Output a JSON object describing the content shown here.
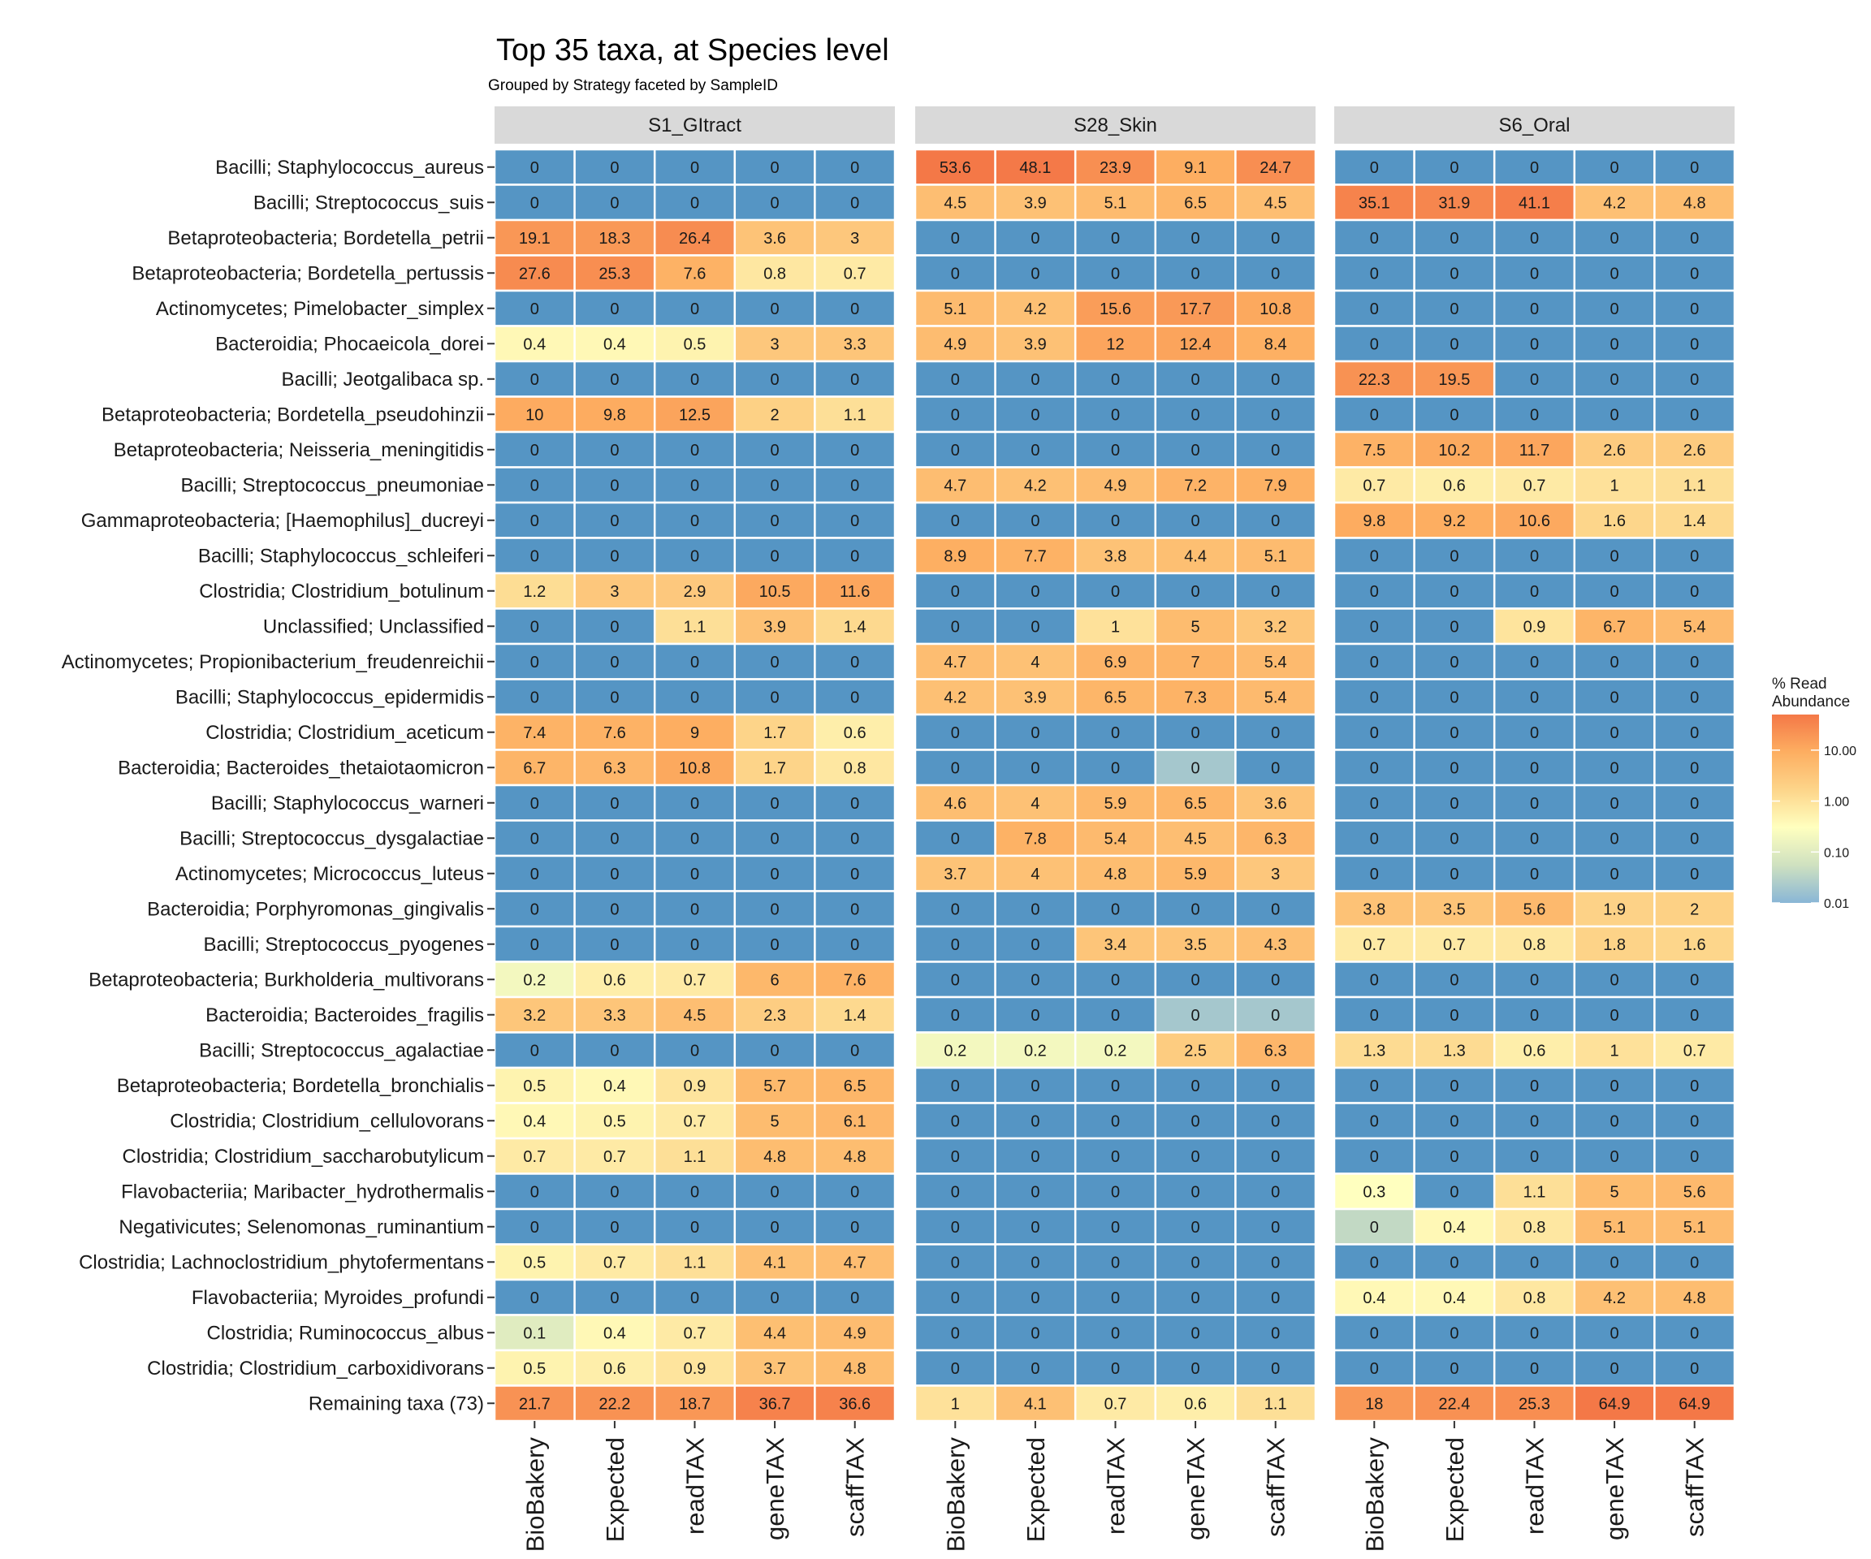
{
  "chart_data": {
    "type": "heatmap",
    "title": "Top 35 taxa, at Species level",
    "subtitle": "Grouped by Strategy faceted by SampleID",
    "facets": [
      "S1_GItract",
      "S28_Skin",
      "S6_Oral"
    ],
    "strategies": [
      "BioBakery",
      "Expected",
      "readTAX",
      "geneTAX",
      "scaffTAX"
    ],
    "taxa": [
      "Bacilli; Staphylococcus_aureus",
      "Bacilli; Streptococcus_suis",
      "Betaproteobacteria; Bordetella_petrii",
      "Betaproteobacteria; Bordetella_pertussis",
      "Actinomycetes; Pimelobacter_simplex",
      "Bacteroidia; Phocaeicola_dorei",
      "Bacilli; Jeotgalibaca sp.",
      "Betaproteobacteria; Bordetella_pseudohinzii",
      "Betaproteobacteria; Neisseria_meningitidis",
      "Bacilli; Streptococcus_pneumoniae",
      "Gammaproteobacteria; [Haemophilus]_ducreyi",
      "Bacilli; Staphylococcus_schleiferi",
      "Clostridia; Clostridium_botulinum",
      "Unclassified; Unclassified",
      "Actinomycetes; Propionibacterium_freudenreichii",
      "Bacilli; Staphylococcus_epidermidis",
      "Clostridia; Clostridium_aceticum",
      "Bacteroidia; Bacteroides_thetaiotaomicron",
      "Bacilli; Staphylococcus_warneri",
      "Bacilli; Streptococcus_dysgalactiae",
      "Actinomycetes; Micrococcus_luteus",
      "Bacteroidia; Porphyromonas_gingivalis",
      "Bacilli; Streptococcus_pyogenes",
      "Betaproteobacteria; Burkholderia_multivorans",
      "Bacteroidia; Bacteroides_fragilis",
      "Bacilli; Streptococcus_agalactiae",
      "Betaproteobacteria; Bordetella_bronchialis",
      "Clostridia; Clostridium_cellulovorans",
      "Clostridia; Clostridium_saccharobutylicum",
      "Flavobacteriia; Maribacter_hydrothermalis",
      "Negativicutes; Selenomonas_ruminantium",
      "Clostridia; Lachnoclostridium_phytofermentans",
      "Flavobacteriia; Myroides_profundi",
      "Clostridia; Ruminococcus_albus",
      "Clostridia; Clostridium_carboxidivorans",
      "Remaining taxa (73)"
    ],
    "values": {
      "S1_GItract": [
        [
          0,
          0,
          0,
          0,
          0
        ],
        [
          0,
          0,
          0,
          0,
          0
        ],
        [
          19.1,
          18.3,
          26.4,
          3.6,
          3
        ],
        [
          27.6,
          25.3,
          7.6,
          0.8,
          0.7
        ],
        [
          0,
          0,
          0,
          0,
          0
        ],
        [
          0.4,
          0.4,
          0.5,
          3,
          3.3
        ],
        [
          0,
          0,
          0,
          0,
          0
        ],
        [
          10,
          9.8,
          12.5,
          2,
          1.1
        ],
        [
          0,
          0,
          0,
          0,
          0
        ],
        [
          0,
          0,
          0,
          0,
          0
        ],
        [
          0,
          0,
          0,
          0,
          0
        ],
        [
          0,
          0,
          0,
          0,
          0
        ],
        [
          1.2,
          3,
          2.9,
          10.5,
          11.6
        ],
        [
          0,
          0,
          1.1,
          3.9,
          1.4
        ],
        [
          0,
          0,
          0,
          0,
          0
        ],
        [
          0,
          0,
          0,
          0,
          0
        ],
        [
          7.4,
          7.6,
          9,
          1.7,
          0.6
        ],
        [
          6.7,
          6.3,
          10.8,
          1.7,
          0.8
        ],
        [
          0,
          0,
          0,
          0,
          0
        ],
        [
          0,
          0,
          0,
          0,
          0
        ],
        [
          0,
          0,
          0,
          0,
          0
        ],
        [
          0,
          0,
          0,
          0,
          0
        ],
        [
          0,
          0,
          0,
          0,
          0
        ],
        [
          0.2,
          0.6,
          0.7,
          6,
          7.6
        ],
        [
          3.2,
          3.3,
          4.5,
          2.3,
          1.4
        ],
        [
          0,
          0,
          0,
          0,
          0
        ],
        [
          0.5,
          0.4,
          0.9,
          5.7,
          6.5
        ],
        [
          0.4,
          0.5,
          0.7,
          5,
          6.1
        ],
        [
          0.7,
          0.7,
          1.1,
          4.8,
          4.8
        ],
        [
          0,
          0,
          0,
          0,
          0
        ],
        [
          0,
          0,
          0,
          0,
          0
        ],
        [
          0.5,
          0.7,
          1.1,
          4.1,
          4.7
        ],
        [
          0,
          0,
          0,
          0,
          0
        ],
        [
          0.1,
          0.4,
          0.7,
          4.4,
          4.9
        ],
        [
          0.5,
          0.6,
          0.9,
          3.7,
          4.8
        ],
        [
          21.7,
          22.2,
          18.7,
          36.7,
          36.6
        ]
      ],
      "S28_Skin": [
        [
          53.6,
          48.1,
          23.9,
          9.1,
          24.7
        ],
        [
          4.5,
          3.9,
          5.1,
          6.5,
          4.5
        ],
        [
          0,
          0,
          0,
          0,
          0
        ],
        [
          0,
          0,
          0,
          0,
          0
        ],
        [
          5.1,
          4.2,
          15.6,
          17.7,
          10.8
        ],
        [
          4.9,
          3.9,
          12,
          12.4,
          8.4
        ],
        [
          0,
          0,
          0,
          0,
          0
        ],
        [
          0,
          0,
          0,
          0,
          0
        ],
        [
          0,
          0,
          0,
          0,
          0
        ],
        [
          4.7,
          4.2,
          4.9,
          7.2,
          7.9
        ],
        [
          0,
          0,
          0,
          0,
          0
        ],
        [
          8.9,
          7.7,
          3.8,
          4.4,
          5.1
        ],
        [
          0,
          0,
          0,
          0,
          0
        ],
        [
          0,
          0,
          1,
          5,
          3.2
        ],
        [
          4.7,
          4,
          6.9,
          7,
          5.4
        ],
        [
          4.2,
          3.9,
          6.5,
          7.3,
          5.4
        ],
        [
          0,
          0,
          0,
          0,
          0
        ],
        [
          0,
          0,
          0,
          0,
          0
        ],
        [
          4.6,
          4,
          5.9,
          6.5,
          3.6
        ],
        [
          0,
          7.8,
          5.4,
          4.5,
          6.3
        ],
        [
          3.7,
          4,
          4.8,
          5.9,
          3
        ],
        [
          0,
          0,
          0,
          0,
          0
        ],
        [
          0,
          0,
          3.4,
          3.5,
          4.3
        ],
        [
          0,
          0,
          0,
          0,
          0
        ],
        [
          0,
          0,
          0,
          0,
          0
        ],
        [
          0.2,
          0.2,
          0.2,
          2.5,
          6.3
        ],
        [
          0,
          0,
          0,
          0,
          0
        ],
        [
          0,
          0,
          0,
          0,
          0
        ],
        [
          0,
          0,
          0,
          0,
          0
        ],
        [
          0,
          0,
          0,
          0,
          0
        ],
        [
          0,
          0,
          0,
          0,
          0
        ],
        [
          0,
          0,
          0,
          0,
          0
        ],
        [
          0,
          0,
          0,
          0,
          0
        ],
        [
          0,
          0,
          0,
          0,
          0
        ],
        [
          0,
          0,
          0,
          0,
          0
        ],
        [
          1,
          4.1,
          0.7,
          0.6,
          1.1
        ]
      ],
      "S6_Oral": [
        [
          0,
          0,
          0,
          0,
          0
        ],
        [
          35.1,
          31.9,
          41.1,
          4.2,
          4.8
        ],
        [
          0,
          0,
          0,
          0,
          0
        ],
        [
          0,
          0,
          0,
          0,
          0
        ],
        [
          0,
          0,
          0,
          0,
          0
        ],
        [
          0,
          0,
          0,
          0,
          0
        ],
        [
          22.3,
          19.5,
          0,
          0,
          0
        ],
        [
          0,
          0,
          0,
          0,
          0
        ],
        [
          7.5,
          10.2,
          11.7,
          2.6,
          2.6
        ],
        [
          0.7,
          0.6,
          0.7,
          1,
          1.1
        ],
        [
          9.8,
          9.2,
          10.6,
          1.6,
          1.4
        ],
        [
          0,
          0,
          0,
          0,
          0
        ],
        [
          0,
          0,
          0,
          0,
          0
        ],
        [
          0,
          0,
          0.9,
          6.7,
          5.4
        ],
        [
          0,
          0,
          0,
          0,
          0
        ],
        [
          0,
          0,
          0,
          0,
          0
        ],
        [
          0,
          0,
          0,
          0,
          0
        ],
        [
          0,
          0,
          0,
          0,
          0
        ],
        [
          0,
          0,
          0,
          0,
          0
        ],
        [
          0,
          0,
          0,
          0,
          0
        ],
        [
          0,
          0,
          0,
          0,
          0
        ],
        [
          3.8,
          3.5,
          5.6,
          1.9,
          2
        ],
        [
          0.7,
          0.7,
          0.8,
          1.8,
          1.6
        ],
        [
          0,
          0,
          0,
          0,
          0
        ],
        [
          0,
          0,
          0,
          0,
          0
        ],
        [
          1.3,
          1.3,
          0.6,
          1,
          0.7
        ],
        [
          0,
          0,
          0,
          0,
          0
        ],
        [
          0,
          0,
          0,
          0,
          0
        ],
        [
          0,
          0,
          0,
          0,
          0
        ],
        [
          0.3,
          0,
          1.1,
          5,
          5.6
        ],
        [
          0,
          0.4,
          0.8,
          5.1,
          5.1
        ],
        [
          0,
          0,
          0,
          0,
          0
        ],
        [
          0.4,
          0.4,
          0.8,
          4.2,
          4.8
        ],
        [
          0,
          0,
          0,
          0,
          0
        ],
        [
          0,
          0,
          0,
          0,
          0
        ],
        [
          18,
          22.4,
          25.3,
          64.9,
          64.9
        ]
      ]
    },
    "near_zero_cells": [
      {
        "facet": "S28_Skin",
        "row": 17,
        "col": 3,
        "level": 0.02
      },
      {
        "facet": "S28_Skin",
        "row": 24,
        "col": 3,
        "level": 0.02
      },
      {
        "facet": "S28_Skin",
        "row": 24,
        "col": 4,
        "level": 0.02
      },
      {
        "facet": "S6_Oral",
        "row": 30,
        "col": 0,
        "level": 0.04
      }
    ],
    "legend": {
      "title": [
        "% Read",
        "Abundance"
      ],
      "ticks": [
        "10.00",
        "1.00",
        "0.10",
        "0.01"
      ],
      "scale": "log",
      "range": [
        0.01,
        50
      ],
      "placement": "right"
    },
    "colors": {
      "zero": "#5595c4",
      "scale": [
        "#89b6d6",
        "#cfe1c0",
        "#ffffbf",
        "#fdd58a",
        "#fdae61",
        "#f47847"
      ],
      "facet_strip": "#d9d9d9"
    }
  }
}
